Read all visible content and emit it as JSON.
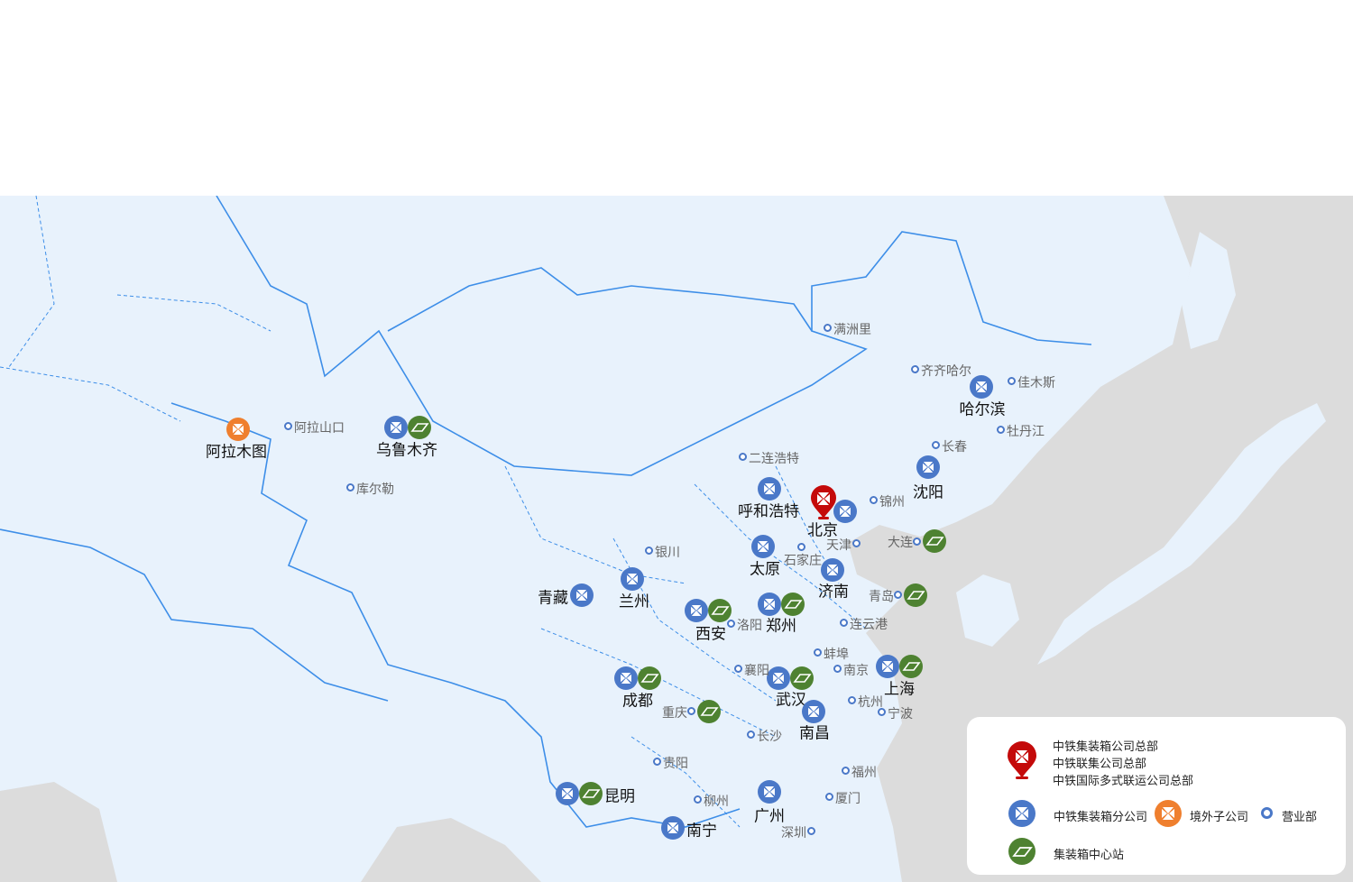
{
  "colors": {
    "branch": "#4a78c8",
    "overseas": "#ef7f2e",
    "hq": "#c40a0a",
    "station": "#4e8231",
    "land": "#e8f2fc",
    "sea": "#dcdcdc",
    "border": "#3d8ee8"
  },
  "markers": [
    {
      "name": "乌鲁木齐",
      "types": [
        "branch",
        "station"
      ]
    },
    {
      "name": "阿拉木图",
      "types": [
        "overseas"
      ]
    },
    {
      "name": "北京",
      "types": [
        "hq",
        "branch"
      ]
    },
    {
      "name": "呼和浩特",
      "types": [
        "branch"
      ]
    },
    {
      "name": "哈尔滨",
      "types": [
        "branch"
      ]
    },
    {
      "name": "沈阳",
      "types": [
        "branch"
      ]
    },
    {
      "name": "太原",
      "types": [
        "branch"
      ]
    },
    {
      "name": "济南",
      "types": [
        "branch"
      ]
    },
    {
      "name": "郑州",
      "types": [
        "branch",
        "station"
      ]
    },
    {
      "name": "西安",
      "types": [
        "branch",
        "station"
      ]
    },
    {
      "name": "兰州",
      "types": [
        "branch"
      ]
    },
    {
      "name": "青藏",
      "types": [
        "branch"
      ]
    },
    {
      "name": "成都",
      "types": [
        "branch",
        "station"
      ]
    },
    {
      "name": "武汉",
      "types": [
        "branch",
        "station"
      ]
    },
    {
      "name": "上海",
      "types": [
        "branch",
        "station"
      ]
    },
    {
      "name": "南昌",
      "types": [
        "branch"
      ]
    },
    {
      "name": "广州",
      "types": [
        "branch"
      ]
    },
    {
      "name": "南宁",
      "types": [
        "branch"
      ]
    },
    {
      "name": "昆明",
      "types": [
        "branch",
        "station"
      ]
    },
    {
      "name": "大连",
      "types": [
        "sales",
        "station"
      ]
    },
    {
      "name": "青岛",
      "types": [
        "sales",
        "station"
      ]
    },
    {
      "name": "重庆",
      "types": [
        "sales",
        "station"
      ]
    }
  ],
  "sales_offices": [
    "阿拉山口",
    "库尔勒",
    "满洲里",
    "齐齐哈尔",
    "佳木斯",
    "牡丹江",
    "长春",
    "二连浩特",
    "锦州",
    "天津",
    "银川",
    "石家庄",
    "洛阳",
    "连云港",
    "蚌埠",
    "襄阳",
    "南京",
    "杭州",
    "宁波",
    "长沙",
    "贵阳",
    "福州",
    "厦门",
    "柳州",
    "深圳"
  ],
  "legend": {
    "hq": [
      "中铁集装箱公司总部",
      "中铁联集公司总部",
      "中铁国际多式联运公司总部"
    ],
    "branch": "中铁集装箱分公司",
    "overseas": "境外子公司",
    "sales": "营业部",
    "station": "集装箱中心站"
  }
}
